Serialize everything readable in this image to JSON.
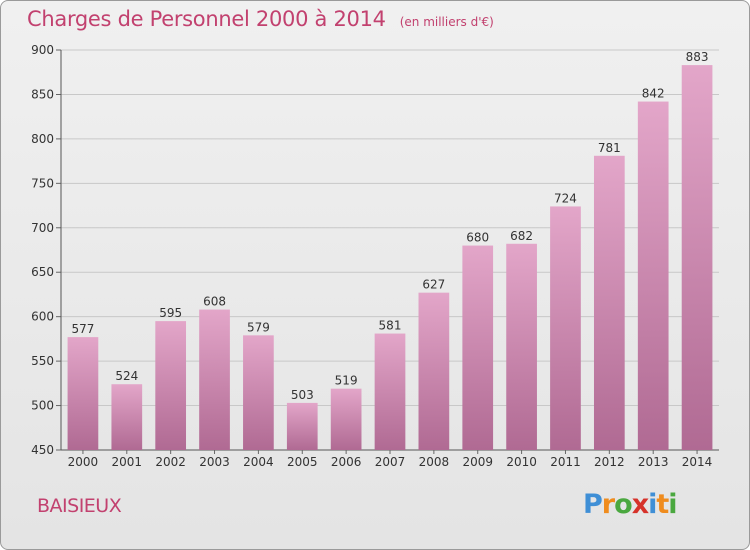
{
  "header": {
    "title": "Charges de Personnel 2000 à 2014",
    "unit": "(en milliers d'€)"
  },
  "footer": {
    "commune": "BAISIEUX",
    "logo_letters": [
      "P",
      "r",
      "o",
      "x",
      "i",
      "t",
      "i"
    ],
    "logo_colors": [
      "#3f8fd6",
      "#ef8c1e",
      "#4aa83f",
      "#d6322a",
      "#3f8fd6",
      "#ef8c1e",
      "#4aa83f"
    ]
  },
  "colors": {
    "bar_top": "#e3a6c9",
    "bar_bottom": "#b06a93",
    "accent": "#c2416f",
    "grid": "#c8c8c8"
  },
  "chart_data": {
    "type": "bar",
    "categories": [
      "2000",
      "2001",
      "2002",
      "2003",
      "2004",
      "2005",
      "2006",
      "2007",
      "2008",
      "2009",
      "2010",
      "2011",
      "2012",
      "2013",
      "2014"
    ],
    "values": [
      577,
      524,
      595,
      608,
      579,
      503,
      519,
      581,
      627,
      680,
      682,
      724,
      781,
      842,
      883
    ],
    "title": "Charges de Personnel 2000 à 2014",
    "subtitle": "(en milliers d'€)",
    "xlabel": "",
    "ylabel": "",
    "ylim": [
      450,
      900
    ],
    "yticks": [
      450,
      500,
      550,
      600,
      650,
      700,
      750,
      800,
      850,
      900
    ],
    "grid": true
  }
}
